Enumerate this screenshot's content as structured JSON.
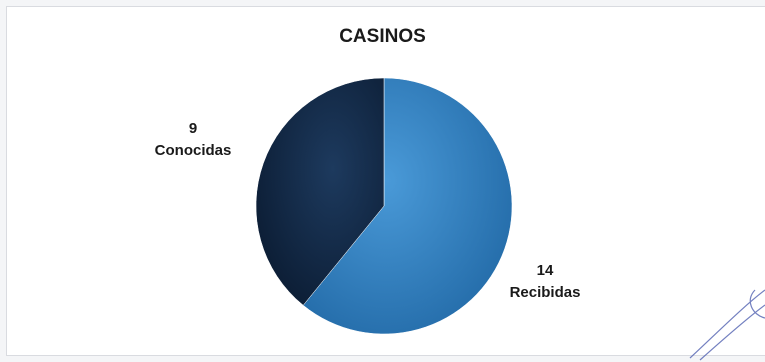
{
  "chart_data": {
    "type": "pie",
    "title": "CASINOS",
    "slices": [
      {
        "label": "Recibidas",
        "value": 14,
        "color": "#2576b8"
      },
      {
        "label": "Conocidas",
        "value": 9,
        "color": "#0f2744"
      }
    ],
    "legend": false
  }
}
